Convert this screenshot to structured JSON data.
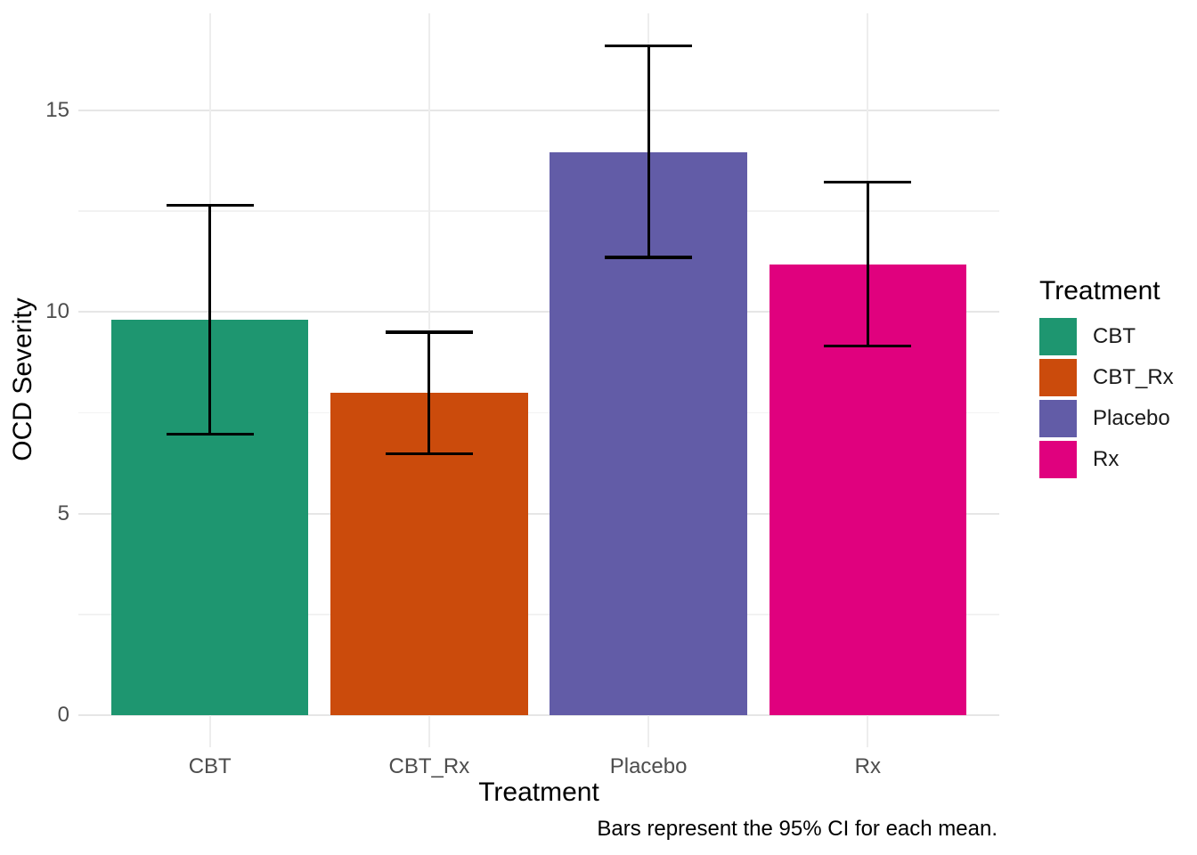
{
  "chart_data": {
    "type": "bar",
    "title": "",
    "xlabel": "Treatment",
    "ylabel": "OCD Severity",
    "caption": "Bars represent the 95% CI for each mean.",
    "categories": [
      "CBT",
      "CBT_Rx",
      "Placebo",
      "Rx"
    ],
    "values": [
      9.8,
      8.0,
      13.97,
      11.18
    ],
    "error_bars": {
      "kind": "95% CI",
      "low": [
        6.97,
        6.48,
        11.35,
        9.16
      ],
      "high": [
        12.65,
        9.5,
        16.6,
        13.22
      ]
    },
    "bar_colors": [
      "#1e9670",
      "#cb4b0c",
      "#625ca7",
      "#e0017e"
    ],
    "ylim": [
      0,
      17.4
    ],
    "yticks": [
      0,
      5,
      10,
      15
    ],
    "ytick_labels": [
      "0",
      "5",
      "10",
      "15"
    ],
    "yticks_minor": [
      2.5,
      7.5,
      12.5
    ],
    "grid": "major and minor horizontal, vertical at category centers",
    "legend": {
      "title": "Treatment",
      "position": "right",
      "items": [
        "CBT",
        "CBT_Rx",
        "Placebo",
        "Rx"
      ]
    }
  },
  "colors": {
    "background": "#ffffff",
    "grid_major": "#e6e6e6",
    "grid_minor": "#f2f2f2",
    "grid_vertical": "#ededed",
    "tick_label": "#4d4d4d",
    "errorbar": "#000000"
  }
}
